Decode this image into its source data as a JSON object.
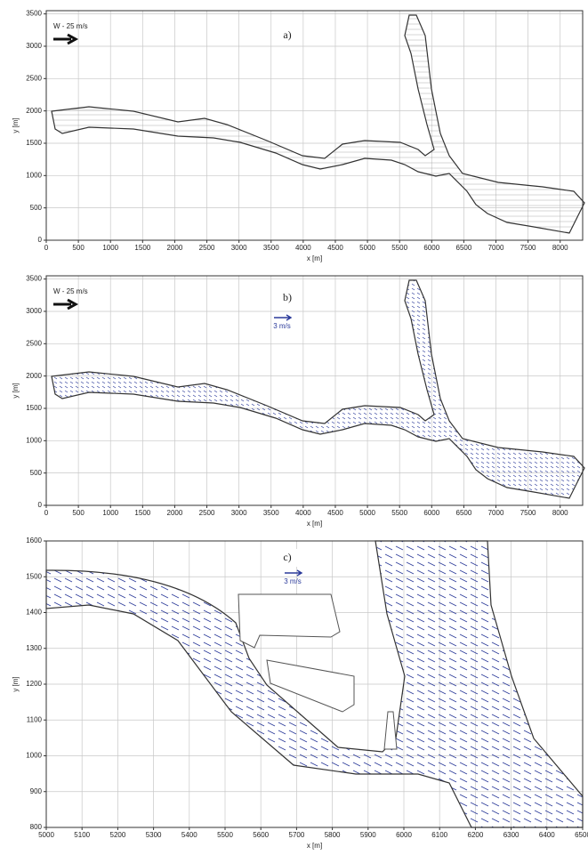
{
  "chart_data": [
    {
      "type": "map",
      "panel_label": "a)",
      "wind_label": "W - 25 m/s",
      "xlabel": "x [m]",
      "ylabel": "y [m]",
      "xlim": [
        0,
        8350
      ],
      "ylim": [
        0,
        3550
      ],
      "xticks": [
        0,
        500,
        1000,
        1500,
        2000,
        2500,
        3000,
        3500,
        4000,
        4500,
        5000,
        5500,
        6000,
        6500,
        7000,
        7500,
        8000
      ],
      "yticks": [
        0,
        500,
        1000,
        1500,
        2000,
        2500,
        3000,
        3500
      ],
      "grid": true,
      "outline_color": "#333333"
    },
    {
      "type": "map",
      "panel_label": "b)",
      "wind_label": "W - 25 m/s",
      "scale_label": "3 m/s",
      "xlabel": "x [m]",
      "ylabel": "y [m]",
      "xlim": [
        0,
        8350
      ],
      "ylim": [
        0,
        3550
      ],
      "xticks": [
        0,
        500,
        1000,
        1500,
        2000,
        2500,
        3000,
        3500,
        4000,
        4500,
        5000,
        5500,
        6000,
        6500,
        7000,
        7500,
        8000
      ],
      "yticks": [
        0,
        500,
        1000,
        1500,
        2000,
        2500,
        3000,
        3500
      ],
      "grid": true,
      "outline_color": "#333333",
      "vector_color": "#2b3a9a"
    },
    {
      "type": "map",
      "panel_label": "c)",
      "scale_label": "3 m/s",
      "xlabel": "x [m]",
      "ylabel": "y [m]",
      "xlim": [
        5000,
        6500
      ],
      "ylim": [
        800,
        1600
      ],
      "xticks": [
        5000,
        5100,
        5200,
        5300,
        5400,
        5500,
        5600,
        5700,
        5800,
        5900,
        6000,
        6100,
        6200,
        6300,
        6400,
        6500
      ],
      "yticks": [
        800,
        900,
        1000,
        1100,
        1200,
        1300,
        1400,
        1500,
        1600
      ],
      "grid": true,
      "outline_color": "#333333",
      "vector_color": "#2b3a9a"
    }
  ]
}
